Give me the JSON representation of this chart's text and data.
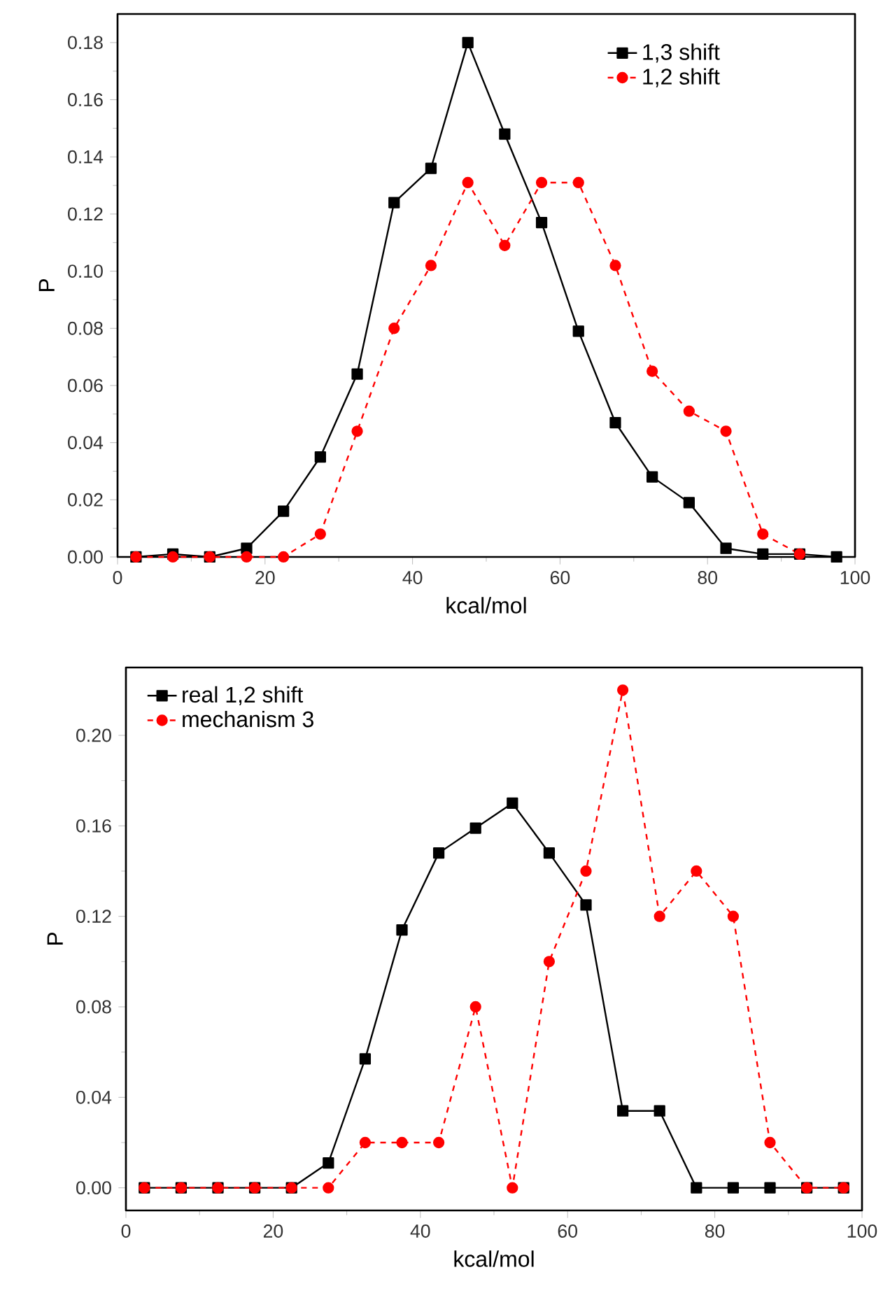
{
  "chart_data": [
    {
      "type": "line",
      "xlabel": "kcal/mol",
      "ylabel": "P",
      "x": [
        2.5,
        7.5,
        12.5,
        17.5,
        22.5,
        27.5,
        32.5,
        37.5,
        42.5,
        47.5,
        52.5,
        57.5,
        62.5,
        67.5,
        72.5,
        77.5,
        82.5,
        87.5,
        92.5,
        97.5
      ],
      "series": [
        {
          "name": "1,3 shift",
          "color": "#000000",
          "marker": "square",
          "line_style": "solid",
          "values": [
            0,
            0.001,
            0,
            0.003,
            0.016,
            0.035,
            0.064,
            0.124,
            0.136,
            0.18,
            0.148,
            0.117,
            0.079,
            0.047,
            0.028,
            0.019,
            0.003,
            0.001,
            0.001,
            0
          ]
        },
        {
          "name": "1,2 shift",
          "color": "#ff0000",
          "marker": "circle",
          "line_style": "dashed",
          "values": [
            0,
            0,
            0,
            0,
            0,
            0.008,
            0.044,
            0.08,
            0.102,
            0.131,
            0.109,
            0.131,
            0.131,
            0.102,
            0.065,
            0.051,
            0.044,
            0.008,
            0.001,
            null
          ]
        }
      ],
      "xlim": [
        0,
        100
      ],
      "ylim": [
        0,
        0.19
      ],
      "xticks": [
        0,
        20,
        40,
        60,
        80,
        100
      ],
      "yticks": [
        {
          "value": 0,
          "label": "0.00"
        },
        {
          "value": 0.02,
          "label": "0.02"
        },
        {
          "value": 0.04,
          "label": "0.04"
        },
        {
          "value": 0.06,
          "label": "0.06"
        },
        {
          "value": 0.08,
          "label": "0.08"
        },
        {
          "value": 0.1,
          "label": "0.10"
        },
        {
          "value": 0.12,
          "label": "0.12"
        },
        {
          "value": 0.14,
          "label": "0.14"
        },
        {
          "value": 0.16,
          "label": "0.16"
        },
        {
          "value": 0.18,
          "label": "0.18"
        }
      ],
      "grid": false,
      "legend": "top right"
    },
    {
      "type": "line",
      "xlabel": "kcal/mol",
      "ylabel": "P",
      "x": [
        2.5,
        7.5,
        12.5,
        17.5,
        22.5,
        27.5,
        32.5,
        37.5,
        42.5,
        47.5,
        52.5,
        57.5,
        62.5,
        67.5,
        72.5,
        77.5,
        82.5,
        87.5,
        92.5,
        97.5
      ],
      "series": [
        {
          "name": "real 1,2 shift",
          "color": "#000000",
          "marker": "square",
          "line_style": "solid",
          "values": [
            0,
            0,
            0,
            0,
            0,
            0.011,
            0.057,
            0.114,
            0.148,
            0.159,
            0.17,
            0.148,
            0.125,
            0.034,
            0.034,
            0,
            0,
            0,
            0,
            0
          ]
        },
        {
          "name": "mechanism 3",
          "color": "#ff0000",
          "marker": "circle",
          "line_style": "dashed",
          "values": [
            0,
            0,
            0,
            0,
            0,
            0,
            0.02,
            0.02,
            0.02,
            0.08,
            0,
            0.1,
            0.14,
            0.22,
            0.12,
            0.14,
            0.12,
            0.02,
            0,
            0
          ]
        }
      ],
      "xlim": [
        0,
        100
      ],
      "ylim": [
        -0.01,
        0.23
      ],
      "xticks": [
        0,
        20,
        40,
        60,
        80,
        100
      ],
      "yticks": [
        {
          "value": 0,
          "label": "0.00"
        },
        {
          "value": 0.04,
          "label": "0.04"
        },
        {
          "value": 0.08,
          "label": "0.08"
        },
        {
          "value": 0.12,
          "label": "0.12"
        },
        {
          "value": 0.16,
          "label": "0.16"
        },
        {
          "value": 0.2,
          "label": "0.20"
        }
      ],
      "grid": false,
      "legend": "top left"
    }
  ]
}
